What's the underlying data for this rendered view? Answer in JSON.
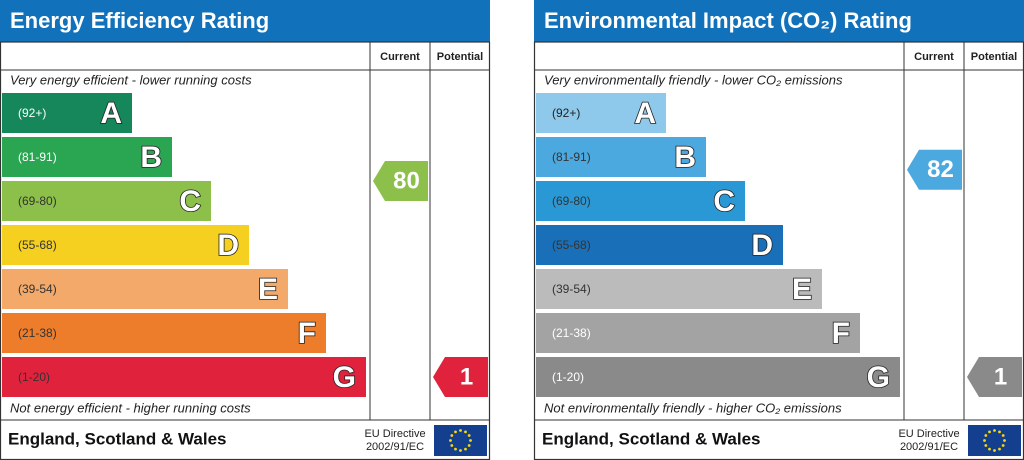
{
  "panels": [
    {
      "title": "Energy Efficiency Rating",
      "columns": [
        "Current",
        "Potential"
      ],
      "top_text": "Very energy efficient - lower running costs",
      "bottom_text": "Not energy efficient - higher running costs",
      "bands": [
        {
          "range": "(92+)",
          "letter": "A",
          "color": "#16875a",
          "text_color": "#ffffff"
        },
        {
          "range": "(81-91)",
          "letter": "B",
          "color": "#2aa552",
          "text_color": "#ffffff"
        },
        {
          "range": "(69-80)",
          "letter": "C",
          "color": "#8cc04a",
          "text_color": "#333333"
        },
        {
          "range": "(55-68)",
          "letter": "D",
          "color": "#f5d020",
          "text_color": "#333333"
        },
        {
          "range": "(39-54)",
          "letter": "E",
          "color": "#f2a96a",
          "text_color": "#333333"
        },
        {
          "range": "(21-38)",
          "letter": "F",
          "color": "#ed7d2a",
          "text_color": "#333333"
        },
        {
          "range": "(1-20)",
          "letter": "G",
          "color": "#e1223c",
          "text_color": "#333333"
        }
      ],
      "current": 80,
      "potential": 1,
      "footer": "England, Scotland & Wales",
      "directive": [
        "EU Directive",
        "2002/91/EC"
      ]
    },
    {
      "title": "Environmental Impact (CO₂) Rating",
      "columns": [
        "Current",
        "Potential"
      ],
      "top_text": "Very environmentally friendly - lower CO₂ emissions",
      "bottom_text": "Not environmentally friendly - higher CO₂ emissions",
      "bands": [
        {
          "range": "(92+)",
          "letter": "A",
          "color": "#8ec9ec",
          "text_color": "#222222"
        },
        {
          "range": "(81-91)",
          "letter": "B",
          "color": "#4ba9e0",
          "text_color": "#333333"
        },
        {
          "range": "(69-80)",
          "letter": "C",
          "color": "#2a98d5",
          "text_color": "#333333"
        },
        {
          "range": "(55-68)",
          "letter": "D",
          "color": "#1a70b8",
          "text_color": "#333333"
        },
        {
          "range": "(39-54)",
          "letter": "E",
          "color": "#bbbbbb",
          "text_color": "#333333"
        },
        {
          "range": "(21-38)",
          "letter": "F",
          "color": "#a3a3a3",
          "text_color": "#ffffff"
        },
        {
          "range": "(1-20)",
          "letter": "G",
          "color": "#8a8a8a",
          "text_color": "#ffffff"
        }
      ],
      "current": 82,
      "potential": 1,
      "footer": "England, Scotland & Wales",
      "directive": [
        "EU Directive",
        "2002/91/EC"
      ]
    }
  ]
}
